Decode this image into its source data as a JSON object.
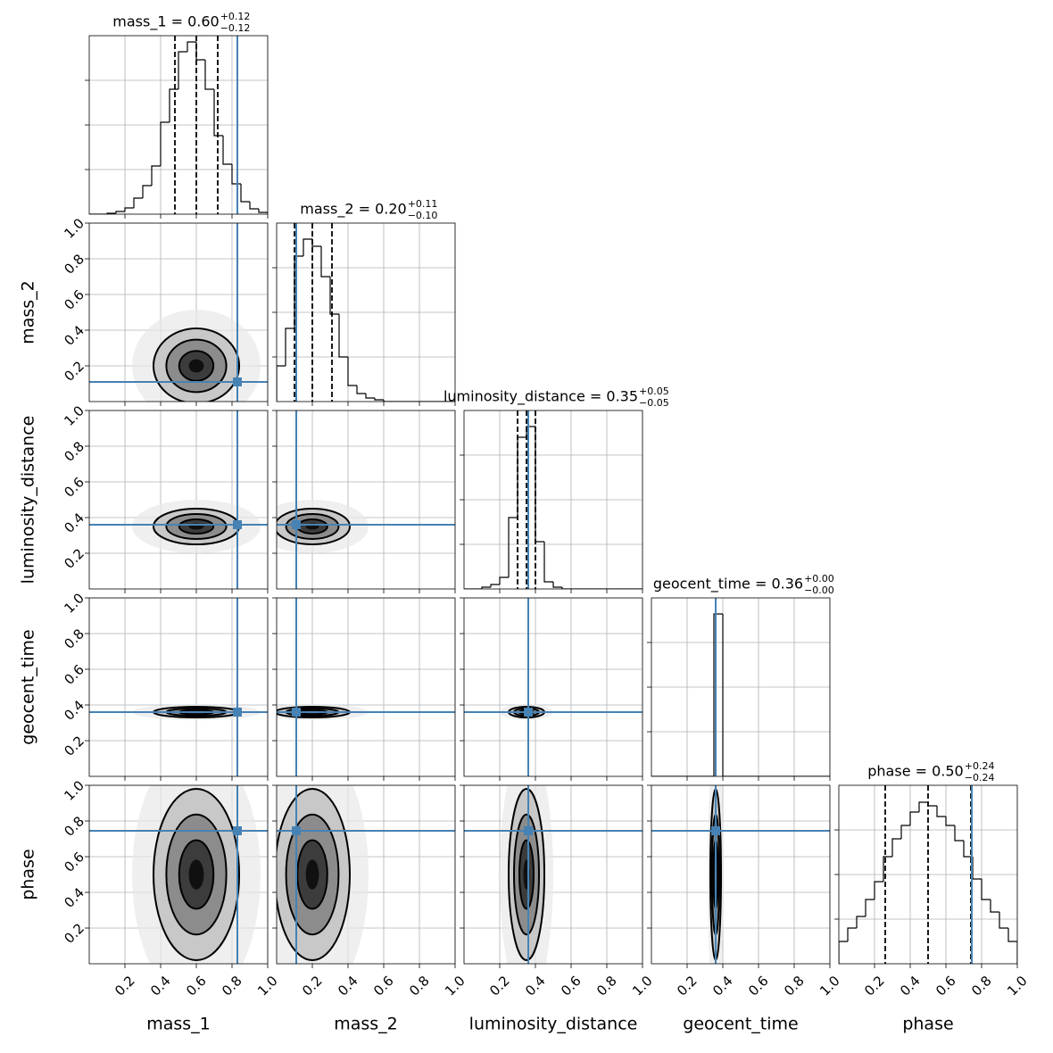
{
  "chart_data": {
    "type": "corner",
    "xlim": [
      0,
      1
    ],
    "ylim": [
      0,
      1
    ],
    "ticks": [
      0.2,
      0.4,
      0.6,
      0.8,
      {
        "value": 1,
        "label": "1.0"
      }
    ],
    "grid": true,
    "truth_color": "#4682b4",
    "bins": [
      0,
      0.05,
      0.1,
      0.15,
      0.2,
      0.25,
      0.3,
      0.35,
      0.4,
      0.45,
      0.5,
      0.55,
      0.6,
      0.65,
      0.7,
      0.75,
      0.8,
      0.85,
      0.9,
      0.95,
      1
    ],
    "hist_ylim": [
      0,
      200
    ],
    "hist_yticks": [
      50,
      100,
      150
    ],
    "parameters": [
      {
        "label": "mass_1",
        "title": "mass_1 = 0.60",
        "upper": "+0.12",
        "lower": "−0.12",
        "median": 0.6,
        "plus": 0.12,
        "minus": 0.12,
        "truth": 0.83,
        "counts": [
          0,
          0,
          1,
          3,
          7,
          18,
          32,
          54,
          103,
          140,
          182,
          193,
          173,
          140,
          88,
          56,
          34,
          14,
          6,
          2
        ]
      },
      {
        "label": "mass_2",
        "title": "mass_2 = 0.20",
        "upper": "+0.11",
        "lower": "−0.10",
        "median": 0.2,
        "plus": 0.11,
        "minus": 0.1,
        "truth": 0.11,
        "counts": [
          40,
          82,
          163,
          182,
          174,
          140,
          98,
          50,
          18,
          9,
          4,
          2,
          0,
          0,
          0,
          0,
          0,
          0,
          0,
          0
        ]
      },
      {
        "label": "luminosity_distance",
        "title": "luminosity_distance = 0.35",
        "upper": "+0.05",
        "lower": "−0.05",
        "median": 0.35,
        "plus": 0.05,
        "minus": 0.05,
        "truth": 0.36,
        "counts": [
          0,
          0,
          2,
          5,
          13,
          80,
          170,
          182,
          53,
          8,
          2,
          0,
          0,
          0,
          0,
          0,
          0,
          0,
          0,
          0
        ]
      },
      {
        "label": "geocent_time",
        "title": "geocent_time = 0.36",
        "upper": "+0.00",
        "lower": "−0.00",
        "median": 0.36,
        "plus": 0.0,
        "minus": 0.0,
        "truth": 0.36,
        "counts": [
          0,
          0,
          0,
          0,
          0,
          0,
          0,
          182,
          0,
          0,
          0,
          0,
          0,
          0,
          0,
          0,
          0,
          0,
          0,
          0
        ]
      },
      {
        "label": "phase",
        "title": "phase = 0.50",
        "upper": "+0.24",
        "lower": "−0.24",
        "median": 0.5,
        "plus": 0.24,
        "minus": 0.24,
        "truth": 0.745,
        "counts": [
          25,
          40,
          53,
          72,
          92,
          120,
          140,
          155,
          170,
          181,
          177,
          165,
          155,
          138,
          120,
          95,
          72,
          58,
          40,
          25
        ]
      }
    ]
  }
}
